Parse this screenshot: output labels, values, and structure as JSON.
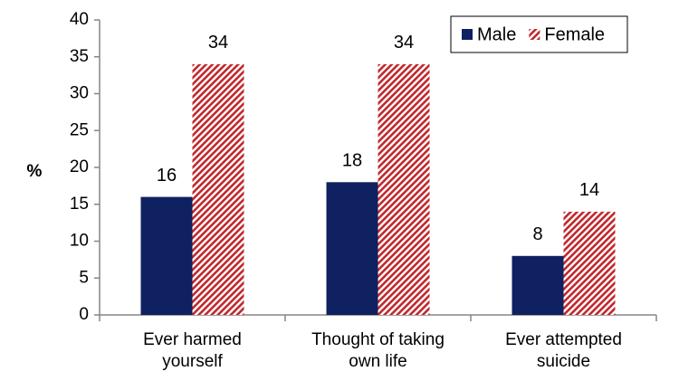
{
  "chart_data": {
    "type": "bar",
    "y_label": "%",
    "categories": [
      [
        "Ever harmed",
        "yourself"
      ],
      [
        "Thought of taking",
        "own life"
      ],
      [
        "Ever attempted",
        "suicide"
      ]
    ],
    "series": [
      {
        "name": "Male",
        "color": "#0f2160",
        "values": [
          16,
          18,
          8
        ]
      },
      {
        "name": "Female",
        "color": "#c0282d",
        "pattern": "diagonal-stripes",
        "values": [
          34,
          34,
          14
        ]
      }
    ],
    "ylim": [
      0,
      40
    ],
    "yticks": [
      0,
      5,
      10,
      15,
      20,
      25,
      30,
      35,
      40
    ],
    "grid": false,
    "legend": "top-right",
    "value_labels_shown": true
  }
}
